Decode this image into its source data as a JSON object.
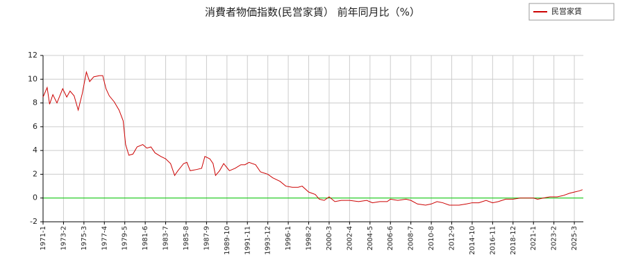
{
  "chart_data": {
    "type": "line",
    "title": "消費者物価指数(民営家賃） 前年同月比（%）",
    "x": [
      "1971-1",
      "1971-6",
      "1971-9",
      "1972-1",
      "1972-6",
      "1973-1",
      "1973-6",
      "1973-10",
      "1974-3",
      "1974-8",
      "1975-1",
      "1975-6",
      "1975-10",
      "1976-3",
      "1976-10",
      "1977-2",
      "1977-6",
      "1977-10",
      "1978-4",
      "1978-10",
      "1979-3",
      "1979-6",
      "1979-10",
      "1980-3",
      "1980-8",
      "1981-3",
      "1981-8",
      "1982-1",
      "1982-6",
      "1983-1",
      "1983-7",
      "1984-1",
      "1984-6",
      "1984-10",
      "1985-5",
      "1985-9",
      "1986-1",
      "1986-9",
      "1987-3",
      "1987-7",
      "1988-1",
      "1988-5",
      "1988-8",
      "1989-1",
      "1989-6",
      "1990-1",
      "1990-8",
      "1991-3",
      "1991-8",
      "1992-1",
      "1992-9",
      "1993-3",
      "1993-12",
      "1994-6",
      "1995-3",
      "1995-10",
      "1996-6",
      "1997-1",
      "1997-6",
      "1998-2",
      "1998-10",
      "1999-3",
      "1999-9",
      "2000-3",
      "2000-10",
      "2001-6",
      "2002-4",
      "2003-3",
      "2004-1",
      "2004-8",
      "2005-5",
      "2006-2",
      "2006-6",
      "2007-3",
      "2008-1",
      "2008-7",
      "2009-3",
      "2010-1",
      "2010-8",
      "2011-3",
      "2011-10",
      "2012-6",
      "2013-6",
      "2014-3",
      "2014-10",
      "2015-6",
      "2016-3",
      "2016-11",
      "2017-6",
      "2018-3",
      "2018-12",
      "2019-9",
      "2020-6",
      "2021-1",
      "2021-6",
      "2022-1",
      "2022-9",
      "2023-6",
      "2024-1",
      "2024-9",
      "2025-3",
      "2025-9",
      "2026-1"
    ],
    "series": [
      {
        "name": "民営家賃",
        "color": "#cc0000",
        "values": [
          8.5,
          9.3,
          7.9,
          8.7,
          8.0,
          9.2,
          8.5,
          9.0,
          8.6,
          7.4,
          8.8,
          10.6,
          9.8,
          10.2,
          10.3,
          10.3,
          9.2,
          8.6,
          8.1,
          7.4,
          6.5,
          4.5,
          3.6,
          3.7,
          4.3,
          4.5,
          4.2,
          4.3,
          3.8,
          3.5,
          3.3,
          2.9,
          1.9,
          2.3,
          2.9,
          3.0,
          2.3,
          2.4,
          2.5,
          3.5,
          3.3,
          2.9,
          1.9,
          2.3,
          2.9,
          2.3,
          2.5,
          2.8,
          2.8,
          3.0,
          2.8,
          2.2,
          2.0,
          1.7,
          1.4,
          1.0,
          0.9,
          0.9,
          1.0,
          0.5,
          0.3,
          -0.1,
          -0.2,
          0.1,
          -0.3,
          -0.2,
          -0.2,
          -0.3,
          -0.2,
          -0.4,
          -0.3,
          -0.3,
          -0.1,
          -0.2,
          -0.1,
          -0.2,
          -0.5,
          -0.6,
          -0.5,
          -0.3,
          -0.4,
          -0.6,
          -0.6,
          -0.5,
          -0.4,
          -0.4,
          -0.2,
          -0.4,
          -0.3,
          -0.1,
          -0.1,
          0.0,
          0.0,
          0.0,
          -0.1,
          0.0,
          0.1,
          0.1,
          0.2,
          0.4,
          0.5,
          0.6,
          0.7
        ]
      }
    ],
    "xlim": [
      "1971-1",
      "2026-2"
    ],
    "xticks": [
      "1971-1",
      "1973-2",
      "1975-3",
      "1977-4",
      "1979-5",
      "1981-6",
      "1983-7",
      "1985-8",
      "1987-9",
      "1989-10",
      "1991-11",
      "1993-12",
      "1996-1",
      "1998-2",
      "2000-3",
      "2002-4",
      "2004-5",
      "2006-6",
      "2008-7",
      "2010-8",
      "2012-9",
      "2014-10",
      "2016-11",
      "2018-12",
      "2021-1",
      "2023-2",
      "2025-3"
    ],
    "ylim": [
      -2,
      12
    ],
    "yticks": [
      -2,
      0,
      2,
      4,
      6,
      8,
      10,
      12
    ],
    "grid": true,
    "legend": "top-right",
    "reference_line": {
      "value": 0,
      "color": "#00cc00"
    }
  }
}
